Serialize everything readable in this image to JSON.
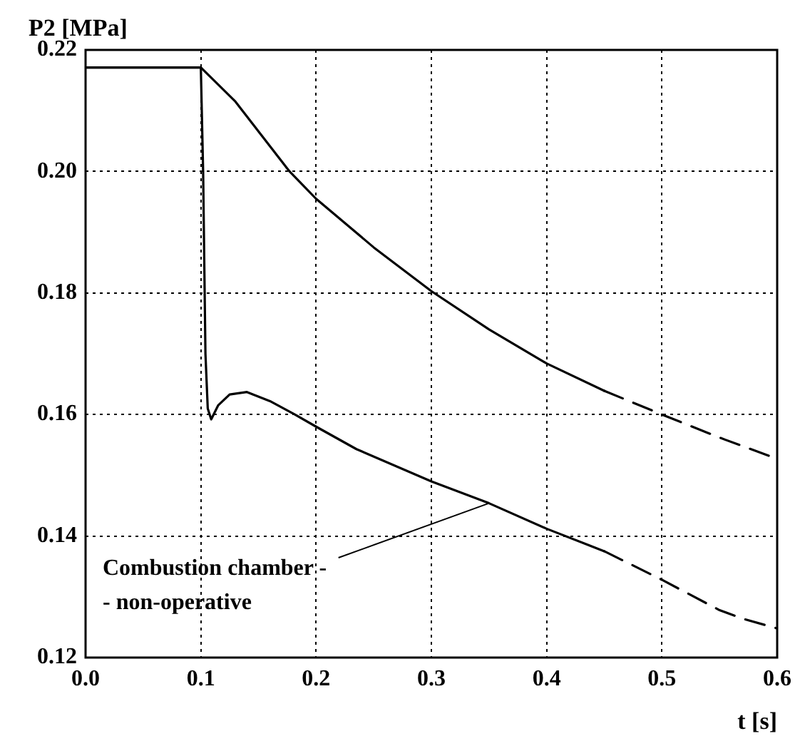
{
  "chart_data": {
    "type": "line",
    "xlabel": "t [s]",
    "ylabel": "P2 [MPa]",
    "xlim": [
      0,
      0.6
    ],
    "xticks": [
      {
        "value": 0,
        "label": "0.0"
      },
      0.1,
      0.2,
      0.3,
      0.4,
      0.5,
      0.6
    ],
    "ylim": [
      0.12,
      0.22
    ],
    "yticks": [
      0.12,
      0.14,
      0.16,
      0.18,
      {
        "value": 0.2,
        "label": "0.20"
      },
      {
        "value": 0.22,
        "label": "0.22"
      }
    ],
    "grid": true,
    "legend": false,
    "marker": "none",
    "series": [
      {
        "color": "#000000",
        "line_style": "solid",
        "x": [
          0,
          0.1,
          0.13,
          0.177,
          0.2,
          0.25,
          0.3,
          0.35,
          0.4,
          0.45
        ],
        "values": [
          0.2171,
          0.2171,
          0.2115,
          0.2,
          0.1955,
          0.1875,
          0.1803,
          0.174,
          0.1684,
          0.1639
        ]
      },
      {
        "color": "#000000",
        "line_style": "dashed",
        "x": [
          0.45,
          0.5,
          0.55,
          0.6
        ],
        "values": [
          0.1639,
          0.16,
          0.1562,
          0.1527
        ]
      },
      {
        "color": "#000000",
        "line_style": "solid",
        "x": [
          0,
          0.1,
          0.102,
          0.104,
          0.106,
          0.109,
          0.115,
          0.125,
          0.14,
          0.16,
          0.1815,
          0.2,
          0.235,
          0.3,
          0.35,
          0.4,
          0.45
        ],
        "values": [
          0.2171,
          0.2171,
          0.2,
          0.17,
          0.161,
          0.1592,
          0.1615,
          0.1633,
          0.1637,
          0.1622,
          0.16,
          0.158,
          0.1543,
          0.149,
          0.1454,
          0.1412,
          0.1375
        ]
      },
      {
        "color": "#000000",
        "line_style": "dashed",
        "x": [
          0.45,
          0.5,
          0.55,
          0.57,
          0.6
        ],
        "values": [
          0.1375,
          0.1328,
          0.1278,
          0.1264,
          0.1248
        ]
      }
    ],
    "annotations": [
      {
        "text": "Combustion chamber -\n- non-operative",
        "x": 0.35,
        "y": 0.1454
      }
    ]
  }
}
